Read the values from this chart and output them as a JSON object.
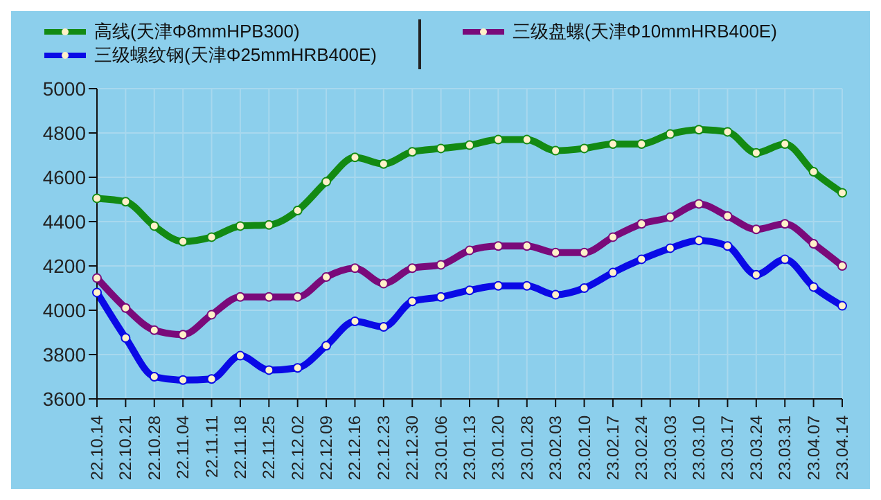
{
  "chart_data": {
    "type": "line",
    "categories": [
      "22.10.14",
      "22.10.21",
      "22.10.28",
      "22.11.04",
      "22.11.11",
      "22.11.18",
      "22.11.25",
      "22.12.02",
      "22.12.09",
      "22.12.16",
      "22.12.23",
      "22.12.30",
      "23.01.06",
      "23.01.13",
      "23.01.20",
      "23.01.28",
      "23.02.03",
      "23.02.10",
      "23.02.17",
      "23.02.24",
      "23.03.03",
      "23.03.10",
      "23.03.17",
      "23.03.24",
      "23.03.31",
      "23.04.07",
      "23.04.14"
    ],
    "series": [
      {
        "name": "高线(天津Φ8mmHPB300)",
        "color": "#138a13",
        "values": [
          4505,
          4490,
          4380,
          4310,
          4330,
          4380,
          4385,
          4450,
          4580,
          4690,
          4660,
          4715,
          4730,
          4745,
          4770,
          4770,
          4720,
          4730,
          4750,
          4750,
          4795,
          4815,
          4805,
          4710,
          4750,
          4625,
          4530
        ]
      },
      {
        "name": "三级螺纹钢(天津Φ25mmHRB400E)",
        "color": "#0a0ae6",
        "values": [
          4080,
          3875,
          3700,
          3685,
          3690,
          3795,
          3730,
          3740,
          3840,
          3950,
          3925,
          4040,
          4060,
          4090,
          4110,
          4110,
          4070,
          4100,
          4170,
          4230,
          4280,
          4315,
          4290,
          4160,
          4230,
          4105,
          4020
        ]
      },
      {
        "name": "三级盘螺(天津Φ10mmHRB400E)",
        "color": "#7a0a7a",
        "values": [
          4145,
          4010,
          3910,
          3890,
          3980,
          4060,
          4060,
          4060,
          4150,
          4190,
          4120,
          4190,
          4205,
          4270,
          4290,
          4290,
          4260,
          4260,
          4330,
          4390,
          4420,
          4480,
          4425,
          4365,
          4390,
          4300,
          4200
        ]
      }
    ],
    "ylim": [
      3600,
      5000
    ],
    "yticks": [
      3600,
      3800,
      4000,
      4200,
      4400,
      4600,
      4800,
      5000
    ],
    "grid": true,
    "legend": "top",
    "marker": "circle",
    "line_style": "solid"
  }
}
